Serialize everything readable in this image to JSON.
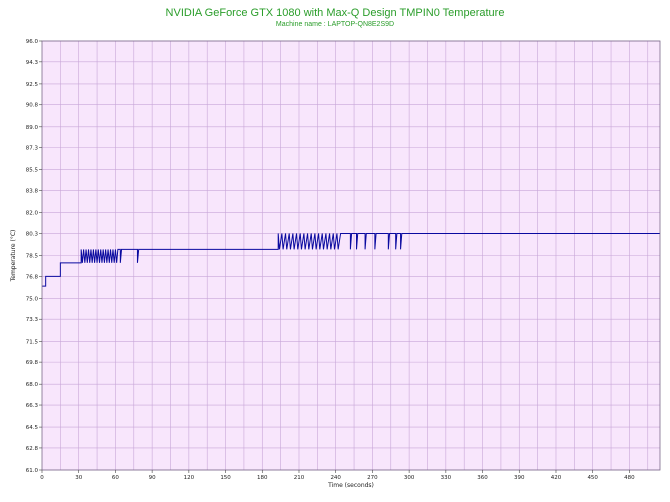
{
  "chart_data": {
    "type": "line",
    "title": "NVIDIA GeForce GTX 1080 with Max-Q Design TMPIN0 Temperature",
    "subtitle": "Machine name : LAPTOP-QN8E2S9D",
    "xlabel": "Time (seconds)",
    "ylabel": "Temperature (°C)",
    "xlim": [
      0,
      505
    ],
    "ylim": [
      61.0,
      96.0
    ],
    "x_ticks": [
      "0",
      "30",
      "60",
      "90",
      "120",
      "150",
      "180",
      "210",
      "240",
      "270",
      "300",
      "330",
      "360",
      "390",
      "420",
      "450",
      "480"
    ],
    "y_ticks": [
      "61.0",
      "62.8",
      "64.5",
      "66.3",
      "68.0",
      "69.8",
      "71.5",
      "73.3",
      "75.0",
      "76.8",
      "78.5",
      "80.3",
      "82.0",
      "83.8",
      "85.5",
      "87.3",
      "89.0",
      "90.8",
      "92.5",
      "94.3",
      "96.0"
    ],
    "grid": true,
    "colors": {
      "plot_bg": "#f8e6fc",
      "grid": "#c8a6d8",
      "line": "#0a0aa0",
      "title": "#2a9d2a",
      "frame": "#7a6a8a"
    },
    "series": [
      {
        "values": [
          [
            0,
            76.0
          ],
          [
            3,
            76.0
          ],
          [
            3,
            76.8
          ],
          [
            15,
            76.8
          ],
          [
            15,
            77.9
          ],
          [
            32,
            77.9
          ],
          [
            32,
            79.0
          ],
          [
            33,
            77.9
          ],
          [
            34,
            79.0
          ],
          [
            35,
            77.9
          ],
          [
            36,
            79.0
          ],
          [
            37,
            77.9
          ],
          [
            38,
            79.0
          ],
          [
            39,
            77.9
          ],
          [
            40,
            79.0
          ],
          [
            41,
            77.9
          ],
          [
            42,
            79.0
          ],
          [
            43,
            77.9
          ],
          [
            44,
            79.0
          ],
          [
            45,
            77.9
          ],
          [
            46,
            79.0
          ],
          [
            47,
            77.9
          ],
          [
            48,
            79.0
          ],
          [
            49,
            77.9
          ],
          [
            50,
            79.0
          ],
          [
            51,
            77.9
          ],
          [
            52,
            79.0
          ],
          [
            53,
            77.9
          ],
          [
            54,
            79.0
          ],
          [
            55,
            77.9
          ],
          [
            56,
            79.0
          ],
          [
            57,
            77.9
          ],
          [
            58,
            79.0
          ],
          [
            59,
            77.9
          ],
          [
            60,
            79.0
          ],
          [
            61,
            77.9
          ],
          [
            62,
            79.0
          ],
          [
            64,
            79.0
          ],
          [
            64,
            77.9
          ],
          [
            65,
            79.0
          ],
          [
            78,
            79.0
          ],
          [
            78,
            77.9
          ],
          [
            79,
            79.0
          ],
          [
            190,
            79.0
          ],
          [
            193,
            79.0
          ],
          [
            193,
            80.3
          ],
          [
            194,
            79.0
          ],
          [
            196,
            80.3
          ],
          [
            197,
            79.0
          ],
          [
            199,
            80.3
          ],
          [
            200,
            79.0
          ],
          [
            202,
            80.3
          ],
          [
            203,
            79.0
          ],
          [
            205,
            80.3
          ],
          [
            206,
            79.0
          ],
          [
            208,
            80.3
          ],
          [
            209,
            79.0
          ],
          [
            211,
            80.3
          ],
          [
            212,
            79.0
          ],
          [
            214,
            80.3
          ],
          [
            215,
            79.0
          ],
          [
            217,
            80.3
          ],
          [
            218,
            79.0
          ],
          [
            220,
            80.3
          ],
          [
            221,
            79.0
          ],
          [
            223,
            80.3
          ],
          [
            224,
            79.0
          ],
          [
            226,
            80.3
          ],
          [
            227,
            79.0
          ],
          [
            229,
            80.3
          ],
          [
            230,
            79.0
          ],
          [
            232,
            80.3
          ],
          [
            233,
            79.0
          ],
          [
            235,
            80.3
          ],
          [
            236,
            79.0
          ],
          [
            238,
            80.3
          ],
          [
            239,
            79.0
          ],
          [
            241,
            80.3
          ],
          [
            242,
            79.0
          ],
          [
            244,
            80.3
          ],
          [
            252,
            80.3
          ],
          [
            252,
            79.0
          ],
          [
            253,
            80.3
          ],
          [
            257,
            80.3
          ],
          [
            257,
            79.0
          ],
          [
            258,
            80.3
          ],
          [
            264,
            80.3
          ],
          [
            264,
            79.0
          ],
          [
            265,
            80.3
          ],
          [
            272,
            80.3
          ],
          [
            272,
            79.0
          ],
          [
            273,
            80.3
          ],
          [
            283,
            80.3
          ],
          [
            283,
            79.0
          ],
          [
            284,
            80.3
          ],
          [
            289,
            80.3
          ],
          [
            289,
            79.0
          ],
          [
            290,
            80.3
          ],
          [
            293,
            80.3
          ],
          [
            293,
            79.0
          ],
          [
            294,
            80.3
          ],
          [
            505,
            80.3
          ]
        ]
      }
    ]
  }
}
